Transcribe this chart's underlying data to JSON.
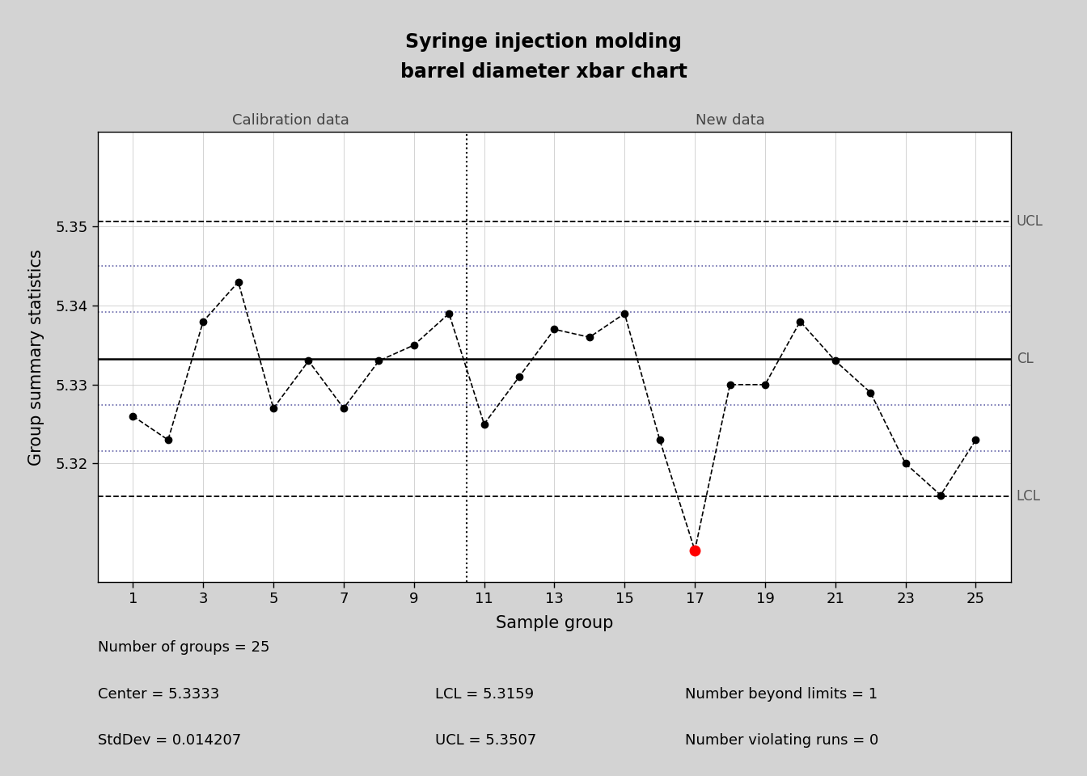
{
  "title_line1": "Syringe injection molding",
  "title_line2": "barrel diameter xbar chart",
  "xlabel": "Sample group",
  "ylabel": "Group summary statistics",
  "x": [
    1,
    2,
    3,
    4,
    5,
    6,
    7,
    8,
    9,
    10,
    11,
    12,
    13,
    14,
    15,
    16,
    17,
    18,
    19,
    20,
    21,
    22,
    23,
    24,
    25
  ],
  "y": [
    5.326,
    5.323,
    5.338,
    5.343,
    5.327,
    5.333,
    5.327,
    5.333,
    5.335,
    5.339,
    5.325,
    5.331,
    5.337,
    5.336,
    5.339,
    5.323,
    5.309,
    5.33,
    5.33,
    5.338,
    5.333,
    5.329,
    5.32,
    5.316,
    5.323
  ],
  "CL": 5.3333,
  "UCL": 5.3507,
  "LCL": 5.3159,
  "sigma1_upper": 5.3392,
  "sigma1_lower": 5.3274,
  "sigma2_upper": 5.345,
  "sigma2_lower": 5.3216,
  "violation_idx": 16,
  "calibration_end": 10,
  "ylim_min": 5.305,
  "ylim_max": 5.362,
  "yticks": [
    5.32,
    5.33,
    5.34,
    5.35
  ],
  "xticks": [
    1,
    3,
    5,
    7,
    9,
    11,
    13,
    15,
    17,
    19,
    21,
    23,
    25
  ],
  "bg_color": "#d3d3d3",
  "plot_bg": "#ffffff",
  "line_color": "#000000",
  "cl_color": "#000000",
  "ucl_lcl_color": "#000000",
  "sigma_color": "#6666aa",
  "violation_color": "#ff0000",
  "calibration_label": "Calibration data",
  "new_data_label": "New data",
  "stats_n": "Number of groups = 25",
  "stats_center": "Center = 5.3333",
  "stats_std": "StdDev = 0.014207",
  "stats_lcl": "LCL = 5.3159",
  "stats_ucl": "UCL = 5.3507",
  "stats_beyond": "Number beyond limits = 1",
  "stats_runs": "Number violating runs = 0"
}
